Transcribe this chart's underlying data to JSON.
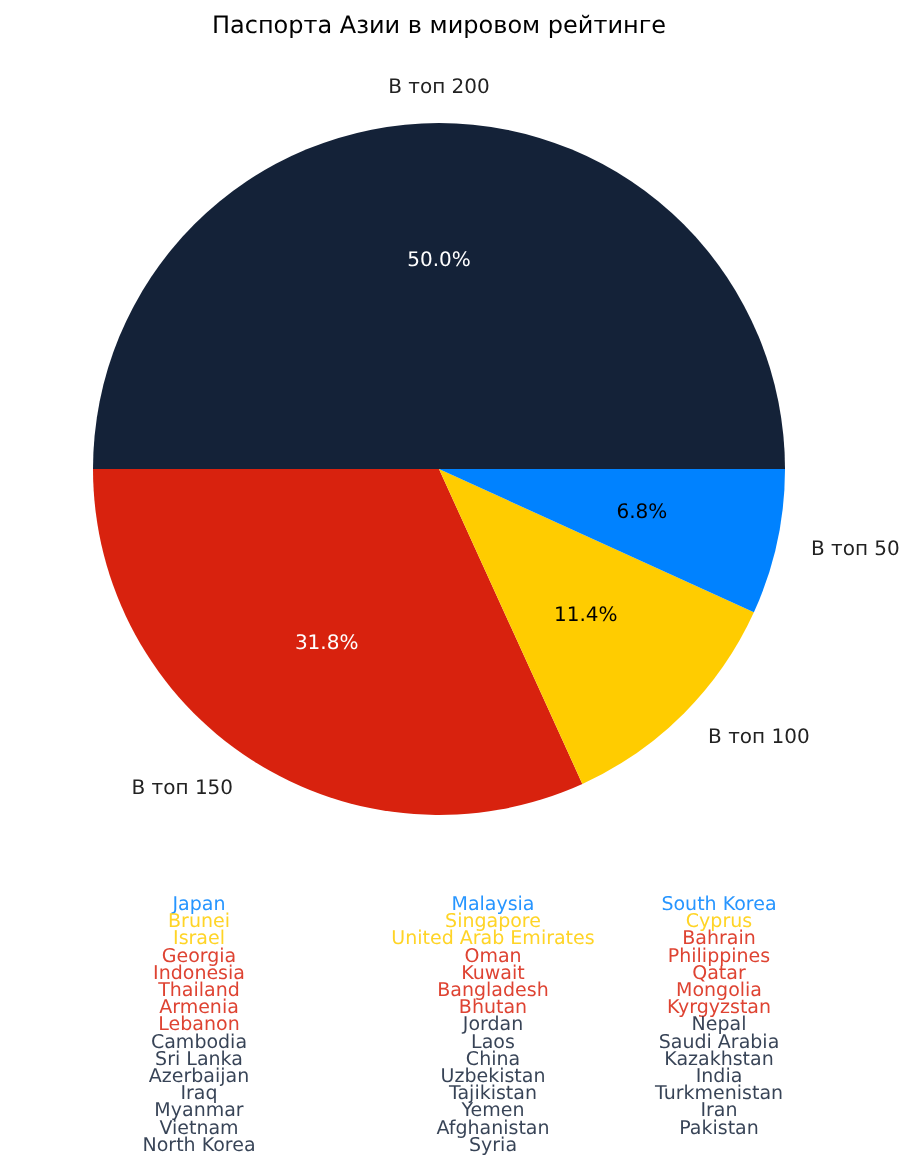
{
  "chart_data": {
    "type": "pie",
    "title": "Паспорта Азии в мировом рейтинге",
    "categories": [
      "В топ 200",
      "В топ 150",
      "В топ 100",
      "В топ 50"
    ],
    "values": [
      50.0,
      31.8,
      11.4,
      6.8
    ],
    "colors": [
      "#142238",
      "#d8220e",
      "#ffcc00",
      "#0082ff"
    ],
    "value_labels": [
      "50.0%",
      "31.8%",
      "11.4%",
      "6.8%"
    ],
    "annotations": [
      "Japan",
      "Malaysia",
      "South Korea",
      "Brunei",
      "Singapore",
      "Cyprus",
      "Israel",
      "United Arab Emirates",
      "Bahrain",
      "Georgia",
      "Oman",
      "Philippines",
      "Indonesia",
      "Kuwait",
      "Qatar",
      "Thailand",
      "Bangladesh",
      "Mongolia",
      "Armenia",
      "Bhutan",
      "Kyrgyzstan",
      "Lebanon",
      "Jordan",
      "Nepal",
      "Cambodia",
      "Laos",
      "Saudi Arabia",
      "Sri Lanka",
      "China",
      "Kazakhstan",
      "Azerbaijan",
      "Uzbekistan",
      "India",
      "Iraq",
      "Tajikistan",
      "Turkmenistan",
      "Myanmar",
      "Yemen",
      "Iran",
      "Vietnam",
      "Afghanistan",
      "Pakistan",
      "North Korea",
      "Syria"
    ]
  }
}
